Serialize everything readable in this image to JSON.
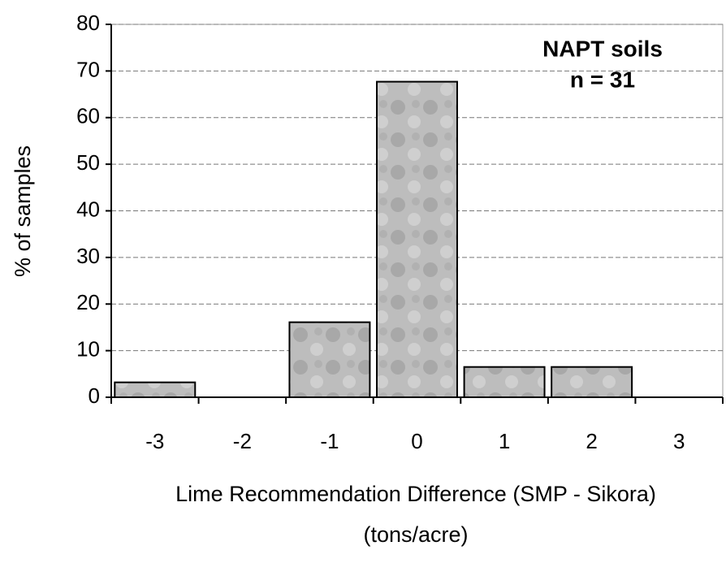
{
  "chart_data": {
    "type": "bar",
    "categories": [
      "-3",
      "-2",
      "-1",
      "0",
      "1",
      "2",
      "3"
    ],
    "values": [
      3.2,
      0,
      16.1,
      67.7,
      6.5,
      6.5,
      0
    ],
    "color": "#b4b4b4",
    "ylim": [
      0,
      80
    ],
    "yticks": [
      0,
      10,
      20,
      30,
      40,
      50,
      60,
      70,
      80
    ],
    "grid": true,
    "ylabel": "% of samples",
    "xlabel": [
      "Lime Recommendation Difference (SMP - Sikora)",
      "(tons/acre)"
    ],
    "annotation": [
      "NAPT soils",
      "n = 31"
    ]
  }
}
